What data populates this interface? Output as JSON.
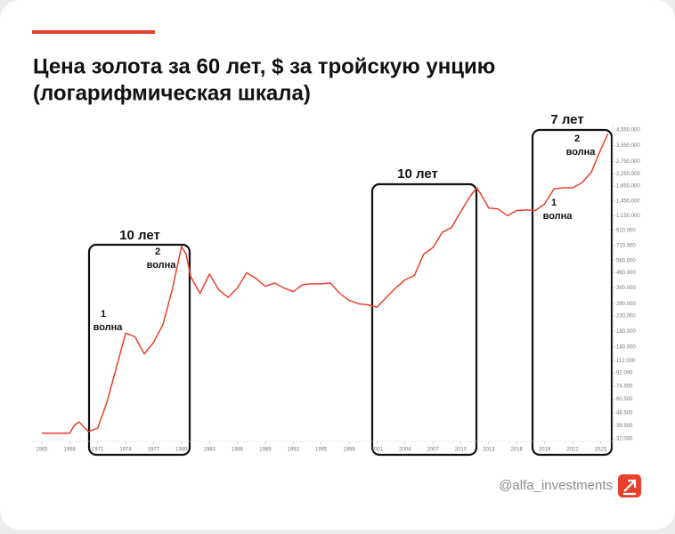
{
  "chart_data": {
    "type": "line",
    "title": "Цена золота за 60 лет, $ за тройскую унцию",
    "subtitle": "(логарифмическая шкала)",
    "log_scale": true,
    "color": "#e8402c",
    "xlim": [
      1964,
      2026.3
    ],
    "ylim": [
      29,
      4960
    ],
    "xticks": [
      1965,
      1968,
      1971,
      1974,
      1977,
      1980,
      1983,
      1986,
      1989,
      1992,
      1995,
      1998,
      2001,
      2004,
      2007,
      2010,
      2013,
      2016,
      2019,
      2022,
      2025
    ],
    "yticks": [
      {
        "value": 32,
        "label": "32.000"
      },
      {
        "value": 39.5,
        "label": "39.500"
      },
      {
        "value": 48.5,
        "label": "48.500"
      },
      {
        "value": 60.5,
        "label": "60.500"
      },
      {
        "value": 74.5,
        "label": "74.500"
      },
      {
        "value": 92,
        "label": "92.000"
      },
      {
        "value": 112,
        "label": "112.000"
      },
      {
        "value": 140,
        "label": "140.000"
      },
      {
        "value": 180,
        "label": "180.000"
      },
      {
        "value": 230,
        "label": "230.000"
      },
      {
        "value": 280,
        "label": "280.000"
      },
      {
        "value": 360,
        "label": "360.000"
      },
      {
        "value": 460,
        "label": "460.000"
      },
      {
        "value": 560,
        "label": "560.000"
      },
      {
        "value": 710,
        "label": "710.000"
      },
      {
        "value": 910,
        "label": "910.000"
      },
      {
        "value": 1150,
        "label": "1,150.000"
      },
      {
        "value": 1450,
        "label": "1,450.000"
      },
      {
        "value": 1850,
        "label": "1,850.000"
      },
      {
        "value": 2250,
        "label": "2,250.000"
      },
      {
        "value": 2750,
        "label": "2,750.000"
      },
      {
        "value": 3550,
        "label": "3,550.000"
      },
      {
        "value": 4550,
        "label": "4,550.000"
      }
    ],
    "x": [
      1965,
      1968,
      1968.5,
      1969,
      1970,
      1971,
      1972,
      1973,
      1974,
      1975,
      1976,
      1977,
      1978,
      1979,
      1980,
      1980.5,
      1981,
      1982,
      1983,
      1984,
      1985,
      1986,
      1987,
      1988,
      1989,
      1990,
      1991,
      1992,
      1993,
      1994,
      1995,
      1996,
      1997,
      1998,
      1999,
      2000,
      2001,
      2002,
      2003,
      2004,
      2005,
      2006,
      2007,
      2008,
      2009,
      2010,
      2011,
      2011.7,
      2012,
      2013,
      2014,
      2015,
      2016,
      2017,
      2018,
      2019,
      2020,
      2021,
      2022,
      2023,
      2024,
      2025,
      2025.8
    ],
    "values": [
      35,
      35,
      40,
      42,
      36,
      38,
      58,
      100,
      175,
      165,
      125,
      150,
      200,
      350,
      700,
      620,
      430,
      330,
      450,
      350,
      310,
      360,
      460,
      420,
      370,
      390,
      360,
      340,
      380,
      385,
      385,
      390,
      330,
      295,
      280,
      275,
      265,
      310,
      360,
      410,
      440,
      620,
      690,
      880,
      950,
      1230,
      1570,
      1800,
      1680,
      1300,
      1280,
      1150,
      1250,
      1260,
      1250,
      1390,
      1770,
      1800,
      1800,
      1950,
      2300,
      3300,
      4300
    ],
    "annotations": [
      "10 лет",
      "1",
      "волна",
      "2",
      "волна",
      "10 лет",
      "7 лет",
      "1",
      "волна",
      "2",
      "волна"
    ],
    "footer": "@alfa_investments"
  }
}
